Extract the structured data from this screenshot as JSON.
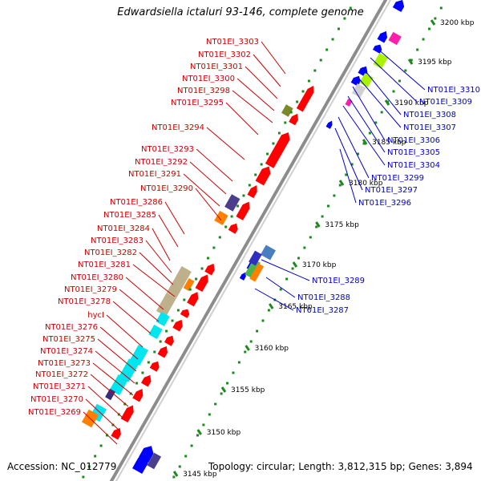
{
  "header": {
    "title": "Edwardsiella ictaluri 93-146, complete genome"
  },
  "footer": {
    "accession": "Accession: NC_012779",
    "topology": "Topology: circular; Length: 3,812,315 bp; Genes: 3,894"
  },
  "colors": {
    "backbone": "#8c8c8c",
    "tick": "#1e8a1e",
    "forward_label": "#cc0000",
    "reverse_label": "#0000cc",
    "cds": "#ff0000",
    "reverse_cds": "#0000ff"
  },
  "scale": {
    "unit": "kbp",
    "ticks": [
      {
        "label": "3145 kbp"
      },
      {
        "label": "3150 kbp"
      },
      {
        "label": "3155 kbp"
      },
      {
        "label": "3160 kbp"
      },
      {
        "label": "3165 kbp"
      },
      {
        "label": "3170 kbp"
      },
      {
        "label": "3175 kbp"
      },
      {
        "label": "3180 kbp"
      },
      {
        "label": "3185 kbp"
      },
      {
        "label": "3190 kbp"
      },
      {
        "label": "3195 kbp"
      },
      {
        "label": "3200 kbp"
      }
    ]
  },
  "labels_left": [
    "NT01EI_3303",
    "NT01EI_3302",
    "NT01EI_3301",
    "NT01EI_3300",
    "NT01EI_3298",
    "NT01EI_3295",
    "NT01EI_3294",
    "NT01EI_3293",
    "NT01EI_3292",
    "NT01EI_3291",
    "NT01EI_3290",
    "NT01EI_3286",
    "NT01EI_3285",
    "NT01EI_3284",
    "NT01EI_3283",
    "NT01EI_3282",
    "NT01EI_3281",
    "NT01EI_3280",
    "NT01EI_3279",
    "NT01EI_3278",
    "hycI",
    "NT01EI_3276",
    "NT01EI_3275",
    "NT01EI_3274",
    "NT01EI_3273",
    "NT01EI_3272",
    "NT01EI_3271",
    "NT01EI_3270",
    "NT01EI_3269"
  ],
  "labels_right_top": [
    "NT01EI_3310",
    "NT01EI_3309",
    "NT01EI_3308",
    "NT01EI_3307",
    "NT01EI_3306",
    "NT01EI_3305",
    "NT01EI_3304",
    "NT01EI_3299",
    "NT01EI_3297",
    "NT01EI_3296"
  ],
  "labels_right_mid": [
    "NT01EI_3289",
    "NT01EI_3288",
    "NT01EI_3287"
  ]
}
